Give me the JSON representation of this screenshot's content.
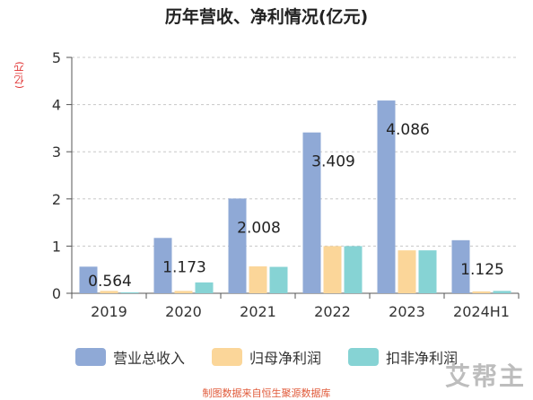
{
  "title": "历年营收、净利情况(亿元)",
  "legend_items": [
    {
      "label": "营业总收入",
      "color": "#8fa9d6"
    },
    {
      "label": "归母净利润",
      "color": "#fbd699"
    },
    {
      "label": "扣非净利润",
      "color": "#86d3d4"
    }
  ],
  "source_text": "制图数据来自恒生聚源数据库",
  "watermark": "艾帮主",
  "chart_data": {
    "type": "bar",
    "title": "历年营收、净利情况(亿元)",
    "ylabel": "(亿元)",
    "ylim": [
      0,
      5
    ],
    "yticks": [
      0,
      1,
      2,
      3,
      4,
      5
    ],
    "grid": true,
    "legend_position": "bottom",
    "categories": [
      "2019",
      "2020",
      "2021",
      "2022",
      "2023",
      "2024H1"
    ],
    "series": [
      {
        "name": "营业总收入",
        "color": "#8fa9d6",
        "values": [
          0.564,
          1.173,
          2.008,
          3.409,
          4.086,
          1.125
        ],
        "labels": [
          "0.564",
          "1.173",
          "2.008",
          "3.409",
          "4.086",
          "1.125"
        ]
      },
      {
        "name": "归母净利润",
        "color": "#fbd699",
        "values": [
          0.05,
          0.05,
          0.57,
          1.0,
          0.91,
          0.04
        ]
      },
      {
        "name": "扣非净利润",
        "color": "#86d3d4",
        "values": [
          0.02,
          0.23,
          0.56,
          1.0,
          0.91,
          0.05
        ]
      }
    ]
  }
}
